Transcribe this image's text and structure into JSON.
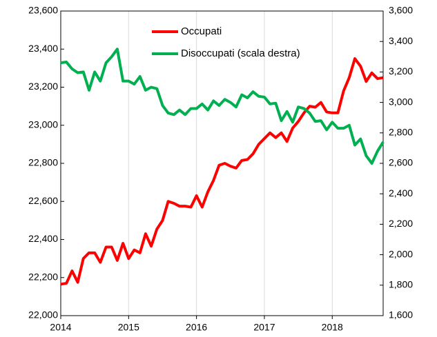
{
  "chart_data": {
    "type": "line",
    "x": [
      2014,
      2014.083,
      2014.167,
      2014.25,
      2014.333,
      2014.417,
      2014.5,
      2014.583,
      2014.667,
      2014.75,
      2014.833,
      2014.917,
      2015,
      2015.083,
      2015.167,
      2015.25,
      2015.333,
      2015.417,
      2015.5,
      2015.583,
      2015.667,
      2015.75,
      2015.833,
      2015.917,
      2016,
      2016.083,
      2016.167,
      2016.25,
      2016.333,
      2016.417,
      2016.5,
      2016.583,
      2016.667,
      2016.75,
      2016.833,
      2016.917,
      2017,
      2017.083,
      2017.167,
      2017.25,
      2017.333,
      2017.417,
      2017.5,
      2017.583,
      2017.667,
      2017.75,
      2017.833,
      2017.917,
      2018,
      2018.083,
      2018.167,
      2018.25,
      2018.333,
      2018.417,
      2018.5,
      2018.583,
      2018.667,
      2018.75
    ],
    "series": [
      {
        "name": "Occupati",
        "color": "#ff0000",
        "values": [
          22165,
          22170,
          22235,
          22175,
          22300,
          22330,
          22330,
          22280,
          22360,
          22360,
          22290,
          22380,
          22300,
          22345,
          22330,
          22430,
          22365,
          22455,
          22500,
          22600,
          22590,
          22575,
          22575,
          22570,
          22630,
          22570,
          22650,
          22710,
          22790,
          22800,
          22785,
          22775,
          22815,
          22820,
          22850,
          22900,
          22930,
          22960,
          22935,
          22960,
          22915,
          22985,
          23020,
          23065,
          23100,
          23095,
          23120,
          23070,
          23065,
          23065,
          23180,
          23250,
          23350,
          23310,
          23230,
          23275,
          23245,
          23250
        ]
      },
      {
        "name": "Disoccupati (scala destra)",
        "color": "#00b050",
        "axis": "y2",
        "values": [
          3260,
          3265,
          3220,
          3195,
          3200,
          3080,
          3200,
          3140,
          3260,
          3300,
          3350,
          3140,
          3140,
          3120,
          3170,
          3080,
          3100,
          3090,
          2980,
          2930,
          2920,
          2950,
          2920,
          2960,
          2960,
          2990,
          2950,
          3010,
          2980,
          3020,
          3000,
          2970,
          3050,
          3030,
          3070,
          3040,
          3035,
          2990,
          2995,
          2880,
          2940,
          2870,
          2970,
          2960,
          2930,
          2875,
          2880,
          2820,
          2870,
          2830,
          2830,
          2850,
          2720,
          2760,
          2650,
          2600,
          2680,
          2740
        ]
      }
    ],
    "xlim": [
      2014,
      2018.75
    ],
    "xticks": [
      2014,
      2015,
      2016,
      2017,
      2018
    ],
    "xgrid": true,
    "ylim": [
      22000,
      23600
    ],
    "yticks": [
      {
        "value": 22000,
        "label": "22,000"
      },
      {
        "value": 22200,
        "label": "22,200"
      },
      {
        "value": 22400,
        "label": "22,400"
      },
      {
        "value": 22600,
        "label": "22,600"
      },
      {
        "value": 22800,
        "label": "22,800"
      },
      {
        "value": 23000,
        "label": "23,000"
      },
      {
        "value": 23200,
        "label": "23,200"
      },
      {
        "value": 23400,
        "label": "23,400"
      },
      {
        "value": 23600,
        "label": "23,600"
      }
    ],
    "y2lim": [
      1600,
      3600
    ],
    "y2ticks": [
      {
        "value": 1600,
        "label": "1,600"
      },
      {
        "value": 1800,
        "label": "1,800"
      },
      {
        "value": 2000,
        "label": "2,000"
      },
      {
        "value": 2200,
        "label": "2,200"
      },
      {
        "value": 2400,
        "label": "2,400"
      },
      {
        "value": 2600,
        "label": "2,600"
      },
      {
        "value": 2800,
        "label": "2,800"
      },
      {
        "value": 3000,
        "label": "3,000"
      },
      {
        "value": 3200,
        "label": "3,200"
      },
      {
        "value": 3400,
        "label": "3,400"
      },
      {
        "value": 3600,
        "label": "3,600"
      }
    ]
  }
}
